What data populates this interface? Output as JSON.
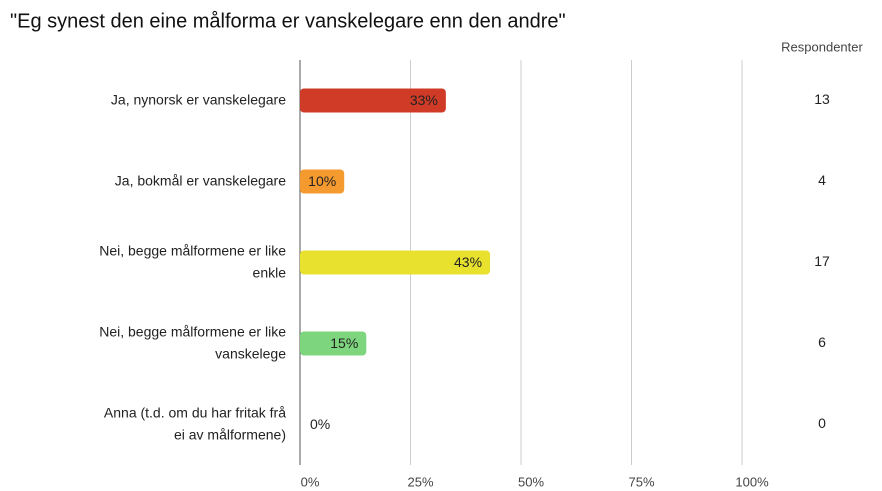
{
  "chart_data": {
    "type": "bar",
    "orientation": "horizontal",
    "title": "\"Eg synest den eine målforma er vanskelegare enn den andre\"",
    "categories": [
      [
        "Ja, nynorsk er vanskelegare"
      ],
      [
        "Ja, bokmål er vanskelegare"
      ],
      [
        "Nei, begge målformene er like",
        "enkle"
      ],
      [
        "Nei, begge målformene er like",
        "vanskelege"
      ],
      [
        "Anna (t.d. om du har fritak frå",
        "ei av målformene)"
      ]
    ],
    "values": [
      33,
      10,
      43,
      15,
      0
    ],
    "value_labels": [
      "33%",
      "10%",
      "43%",
      "15%",
      "0%"
    ],
    "colors": [
      "#d03b27",
      "#f59a2e",
      "#e8e22f",
      "#7dd67d",
      "#cccccc"
    ],
    "xlim": [
      0,
      100
    ],
    "xticks": [
      {
        "value": 0,
        "label": "0%"
      },
      {
        "value": 25,
        "label": "25%"
      },
      {
        "value": 50,
        "label": "50%"
      },
      {
        "value": 75,
        "label": "75%"
      },
      {
        "value": 100,
        "label": "100%"
      }
    ],
    "grid": true,
    "extra_column": {
      "header": "Respondenter",
      "values": [
        13,
        4,
        17,
        6,
        0
      ]
    }
  }
}
